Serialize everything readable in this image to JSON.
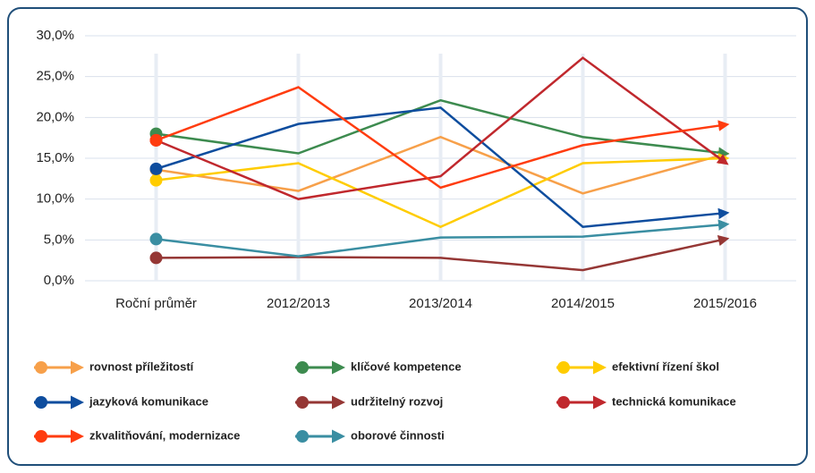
{
  "chart_data": {
    "type": "line",
    "categories": [
      "Roční průměr",
      "2012/2013",
      "2013/2014",
      "2014/2015",
      "2015/2016"
    ],
    "series": [
      {
        "name": "rovnost příležitostí",
        "color": "#f7a04a",
        "values": [
          13.6,
          11.0,
          17.6,
          10.7,
          15.5
        ]
      },
      {
        "name": "klíčové kompetence",
        "color": "#3d8b4f",
        "values": [
          18.0,
          15.6,
          22.1,
          17.6,
          15.6
        ]
      },
      {
        "name": "efektivní řízení škol",
        "color": "#ffcc00",
        "values": [
          12.3,
          14.4,
          6.6,
          14.4,
          15.0
        ]
      },
      {
        "name": "jazyková komunikace",
        "color": "#0e4d9e",
        "values": [
          13.7,
          19.2,
          21.2,
          6.6,
          8.3
        ]
      },
      {
        "name": "udržitelný rozvoj",
        "color": "#953735",
        "values": [
          2.8,
          2.9,
          2.8,
          1.3,
          5.1
        ]
      },
      {
        "name": "technická komunikace",
        "color": "#c0282d",
        "values": [
          17.2,
          10.0,
          12.8,
          27.3,
          14.5
        ]
      },
      {
        "name": "zkvalitňování, modernizace",
        "color": "#ff3c0f",
        "values": [
          17.2,
          23.7,
          11.4,
          16.6,
          19.1
        ]
      },
      {
        "name": "oborové činnosti",
        "color": "#3a8ea2",
        "values": [
          5.1,
          3.0,
          5.3,
          5.4,
          6.9
        ]
      }
    ],
    "ylim": [
      0,
      30
    ],
    "yticks": [
      {
        "value": 0,
        "label": "0,0%"
      },
      {
        "value": 5,
        "label": "5,0%"
      },
      {
        "value": 10,
        "label": "10,0%"
      },
      {
        "value": 15,
        "label": "15,0%"
      },
      {
        "value": 20,
        "label": "20,0%"
      },
      {
        "value": 25,
        "label": "25,0%"
      },
      {
        "value": 30,
        "label": "30,0%"
      }
    ],
    "grid": true
  }
}
